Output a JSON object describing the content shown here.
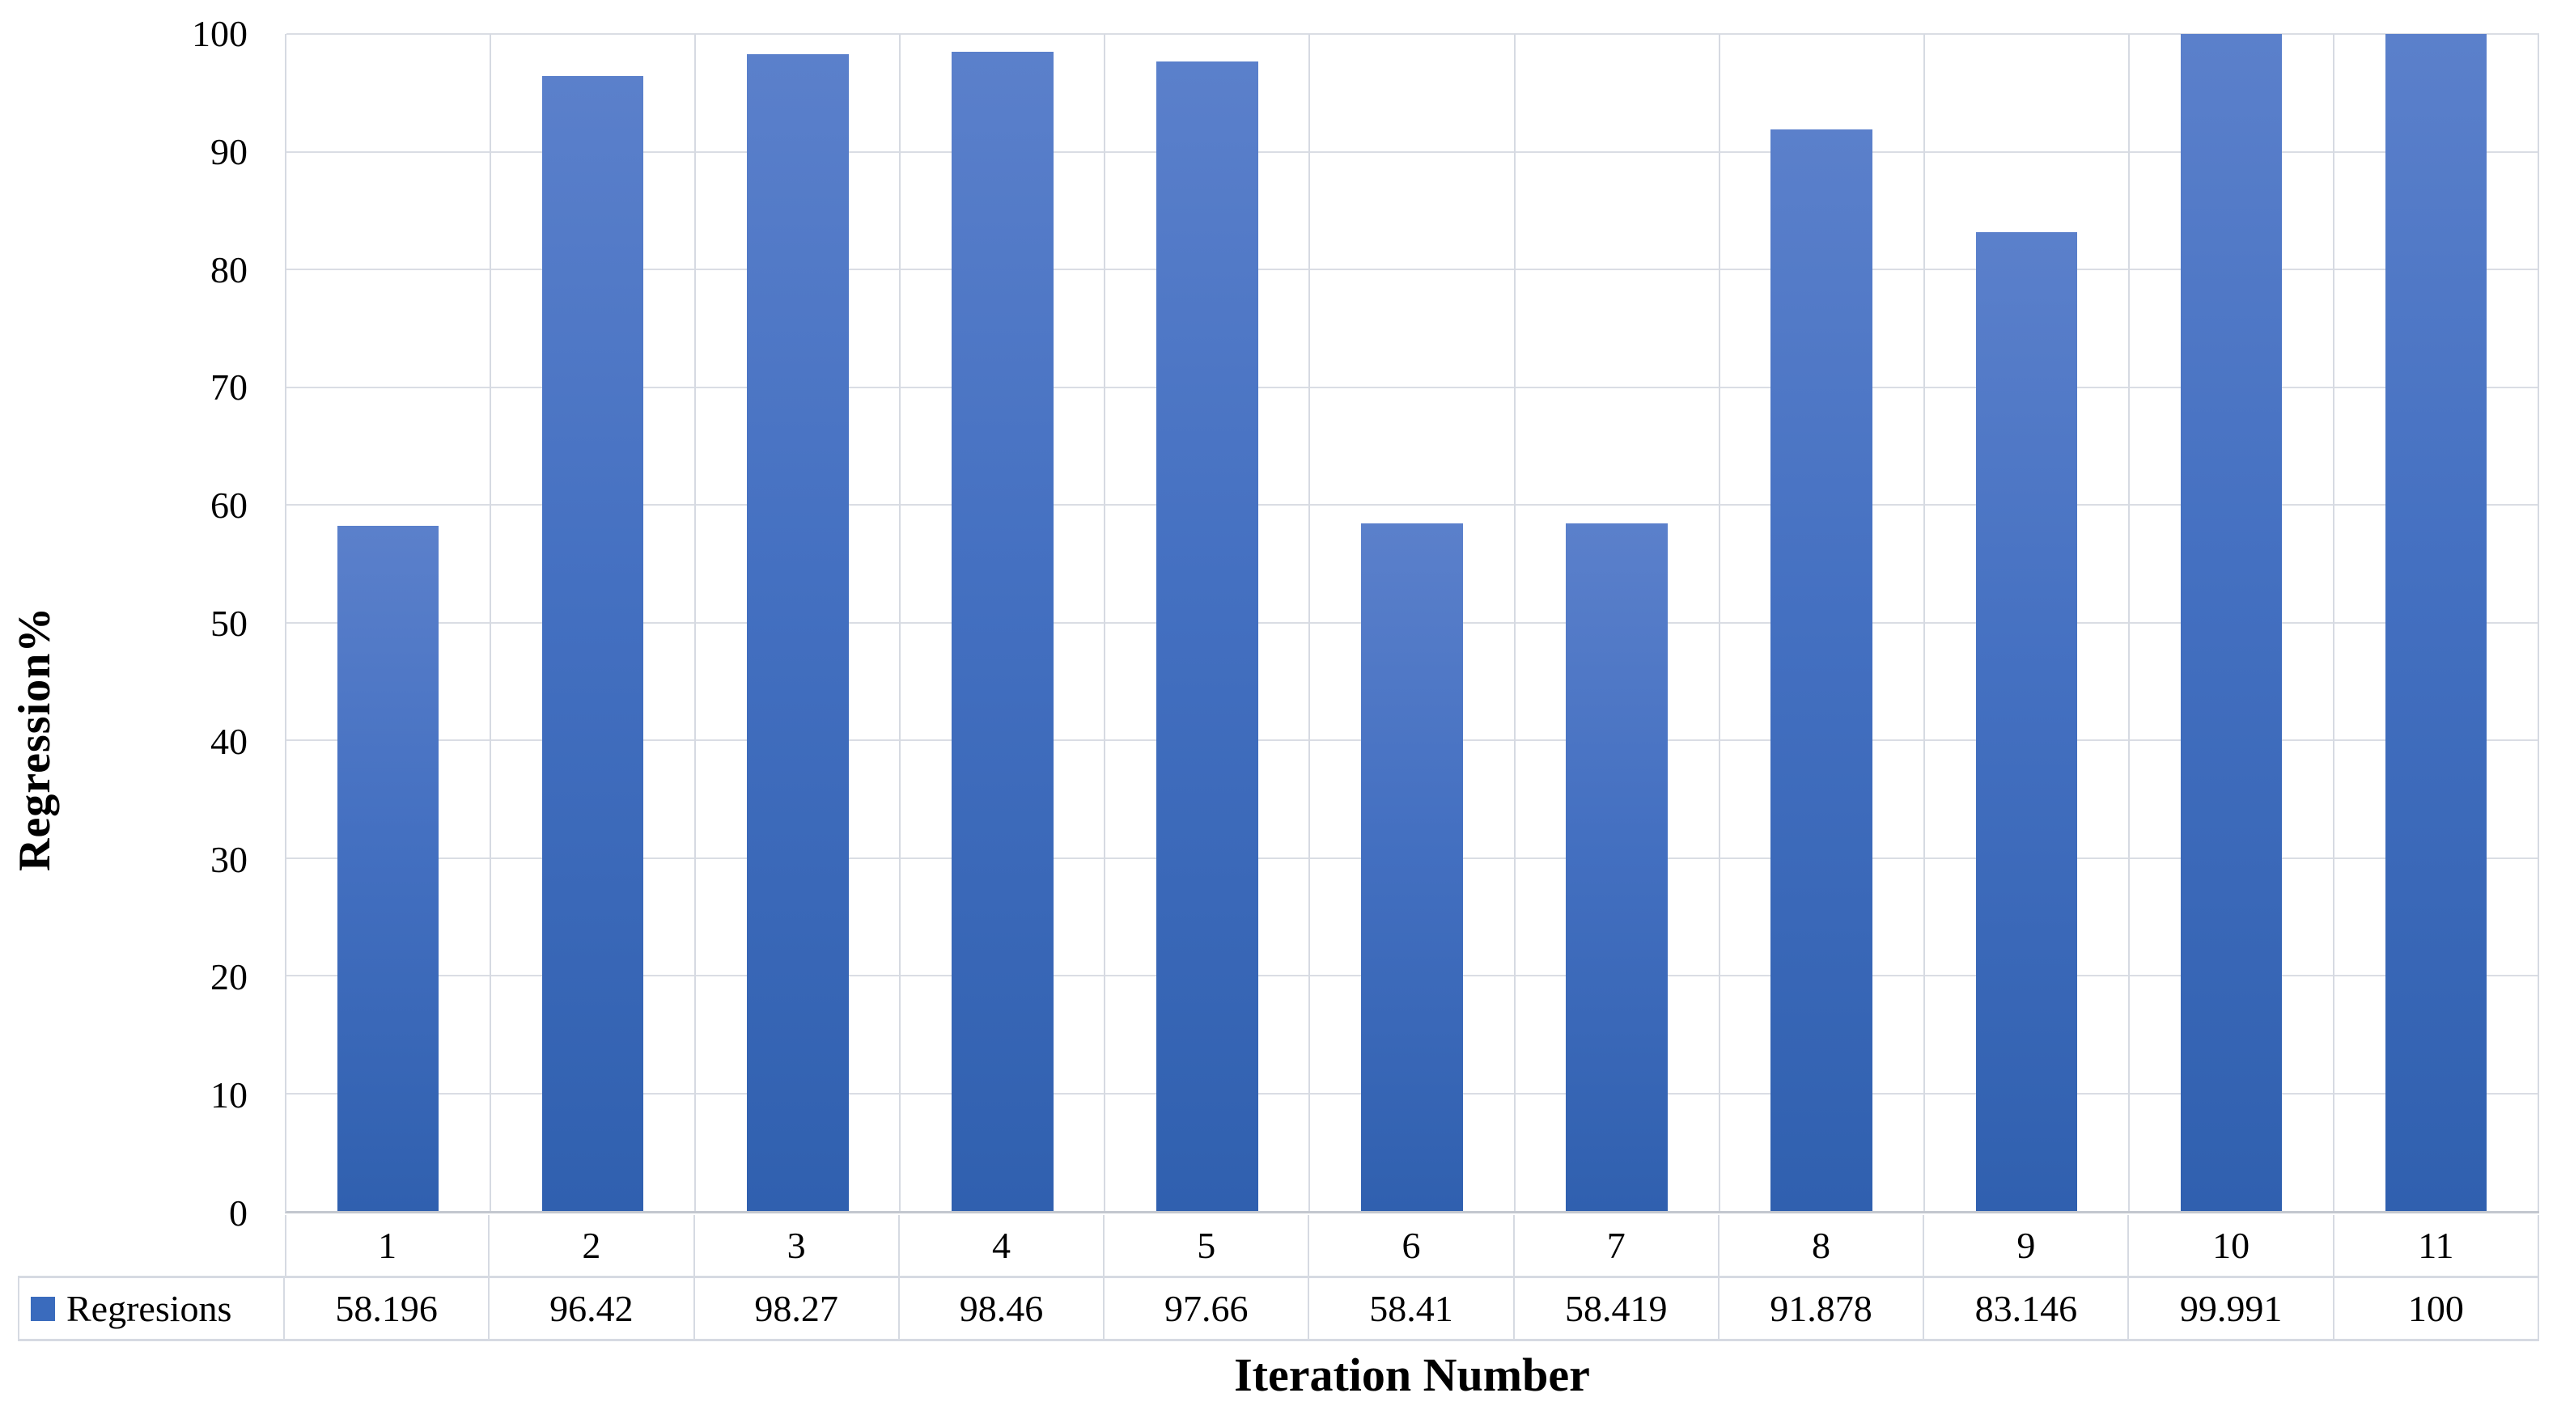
{
  "chart_data": {
    "type": "bar",
    "title": "",
    "categories": [
      "1",
      "2",
      "3",
      "4",
      "5",
      "6",
      "7",
      "8",
      "9",
      "10",
      "11"
    ],
    "series": [
      {
        "name": "Regresions",
        "values": [
          58.196,
          96.42,
          98.27,
          98.46,
          97.66,
          58.41,
          58.419,
          91.878,
          83.146,
          99.991,
          100
        ]
      }
    ],
    "value_labels": [
      "58.196",
      "96.42",
      "98.27",
      "98.46",
      "97.66",
      "58.41",
      "58.419",
      "91.878",
      "83.146",
      "99.991",
      "100"
    ],
    "xlabel": "Iteration Number",
    "ylabel": "Regression%",
    "ylim": [
      0,
      100
    ],
    "y_ticks": [
      0,
      10,
      20,
      30,
      40,
      50,
      60,
      70,
      80,
      90,
      100
    ],
    "grid": true,
    "legend_position": "table-left",
    "colors": {
      "bar_gradient_top": "#5b80cb",
      "bar_gradient_bottom": "#3060af",
      "legend_swatch": "#3a6bbd",
      "gridline": "#dadde4",
      "table_border": "#d6dae2",
      "axis_line": "#c3c7cf",
      "text": "#000000"
    }
  }
}
